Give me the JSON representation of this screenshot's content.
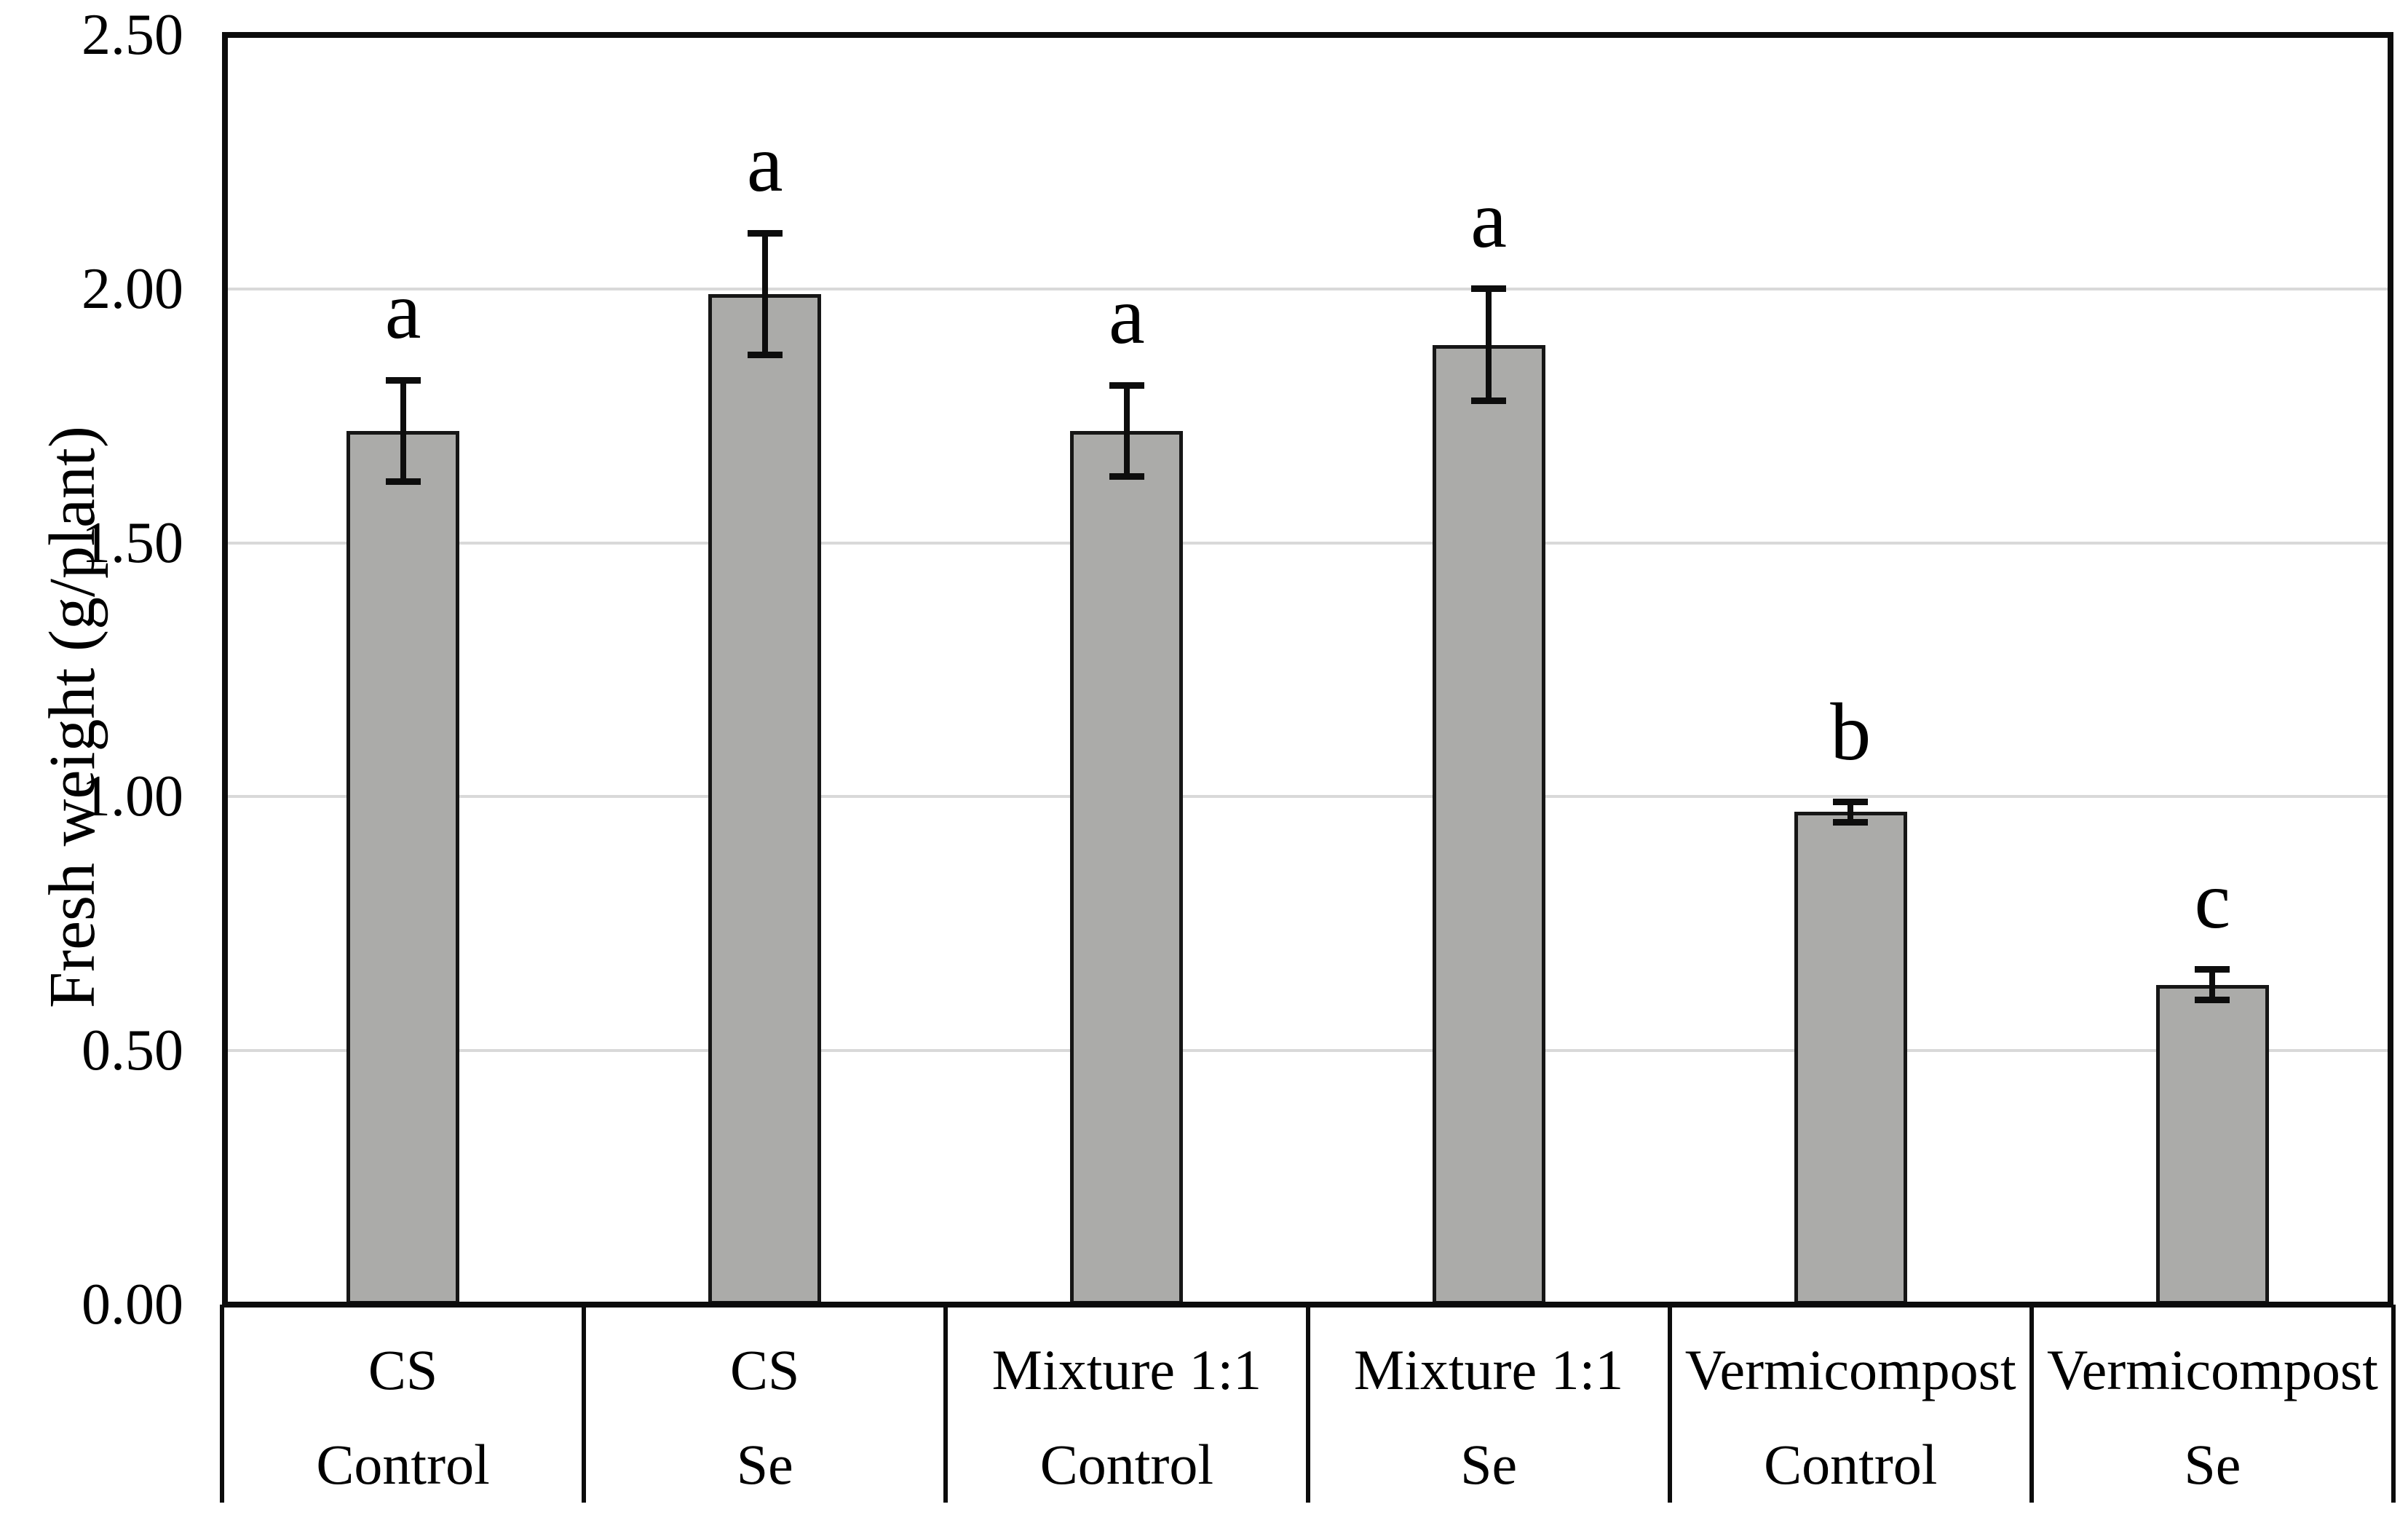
{
  "figure": {
    "background": "#ffffff"
  },
  "chart_data": {
    "type": "bar",
    "title": "",
    "xlabel": "",
    "ylabel": "Fresh weight (g/plant)",
    "ylim": [
      0,
      2.5
    ],
    "ytick_labels": [
      "0.00",
      "0.50",
      "1.00",
      "1.50",
      "2.00",
      "2.50"
    ],
    "ytick_values": [
      0,
      0.5,
      1.0,
      1.5,
      2.0,
      2.5
    ],
    "grid": "horizontal",
    "legend": "none",
    "categories": [
      {
        "substrate": "CS",
        "treatment": "Control"
      },
      {
        "substrate": "CS",
        "treatment": "Se"
      },
      {
        "substrate": "Mixture 1:1",
        "treatment": "Control"
      },
      {
        "substrate": "Mixture 1:1",
        "treatment": "Se"
      },
      {
        "substrate": "Vermicompost",
        "treatment": "Control"
      },
      {
        "substrate": "Vermicompost",
        "treatment": "Se"
      }
    ],
    "series": [
      {
        "name": "Fresh weight",
        "values": [
          1.72,
          1.99,
          1.72,
          1.89,
          0.97,
          0.63
        ],
        "errors": [
          0.1,
          0.12,
          0.09,
          0.11,
          0.02,
          0.03
        ],
        "significance_letters": [
          "a",
          "a",
          "a",
          "a",
          "b",
          "c"
        ]
      }
    ],
    "colors": {
      "bar_fill": "#ababa9",
      "bar_border": "#161616",
      "gridline": "#d9d9d9",
      "axis": "#0c0c0c",
      "error_bar": "#0d0d0d",
      "text": "#000000",
      "background": "#ffffff"
    }
  }
}
